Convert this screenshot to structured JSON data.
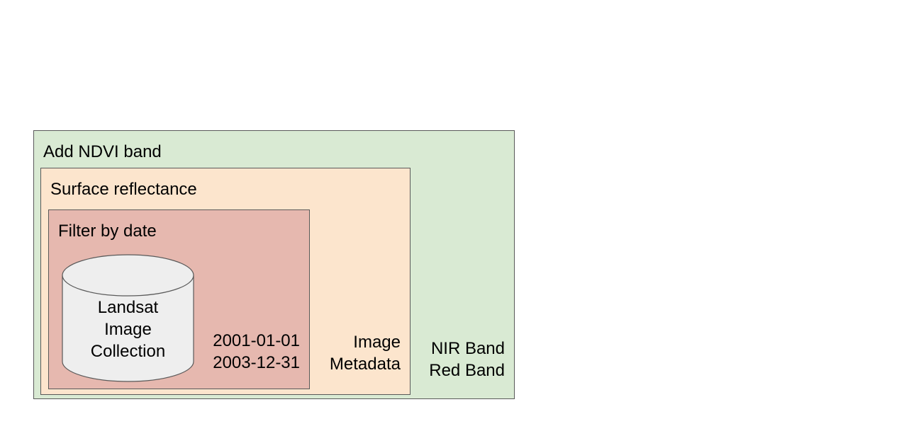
{
  "outer_box": {
    "title": "Add NDVI band",
    "notes": [
      "NIR Band",
      "Red Band"
    ],
    "color": "#d9ead3"
  },
  "middle_box": {
    "title": "Surface reflectance",
    "notes": [
      "Image",
      "Metadata"
    ],
    "color": "#fce5cd"
  },
  "inner_box": {
    "title": "Filter by date",
    "notes": [
      "2001-01-01",
      "2003-12-31"
    ],
    "color": "#e6b8af"
  },
  "collection": {
    "lines": [
      "Landsat",
      "Image",
      "Collection"
    ],
    "color": "#eeeeee"
  }
}
